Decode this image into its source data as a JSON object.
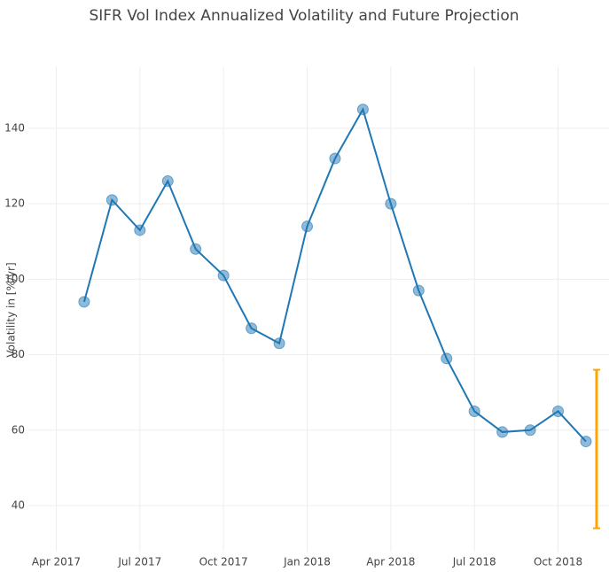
{
  "chart_data": {
    "type": "line",
    "title": "SIFR Vol Index Annualized Volatility and Future Projection",
    "y_label": "Volatility in [%/yr]",
    "x": [
      "2017-05",
      "2017-06",
      "2017-07",
      "2017-08",
      "2017-09",
      "2017-10",
      "2017-11",
      "2017-12",
      "2018-01",
      "2018-02",
      "2018-03",
      "2018-04",
      "2018-05",
      "2018-06",
      "2018-07",
      "2018-08",
      "2018-09",
      "2018-10",
      "2018-11"
    ],
    "series": [
      {
        "color": "#1f77b4",
        "values": [
          94,
          121,
          113,
          126,
          108,
          101,
          87,
          83,
          114,
          132,
          145,
          120,
          97,
          79,
          65,
          59.5,
          60,
          65,
          57
        ]
      },
      {
        "color": "#ffa500",
        "x": [
          "2018-11"
        ],
        "values": [
          55
        ],
        "error": [
          21
        ]
      }
    ],
    "xlim": [
      "2017-03",
      "2018-11"
    ],
    "xticks": [
      {
        "value": "2017-04",
        "label": "Apr 2017"
      },
      {
        "value": "2017-07",
        "label": "Jul 2017"
      },
      {
        "value": "2017-10",
        "label": "Oct 2017"
      },
      {
        "value": "2018-01",
        "label": "Jan 2018"
      },
      {
        "value": "2018-04",
        "label": "Apr 2018"
      },
      {
        "value": "2018-07",
        "label": "Jul 2018"
      },
      {
        "value": "2018-10",
        "label": "Oct 2018"
      }
    ],
    "ylim": [
      27.8,
      156.4
    ],
    "yticks": [
      40,
      60,
      80,
      100,
      120,
      140
    ],
    "grid": true
  }
}
